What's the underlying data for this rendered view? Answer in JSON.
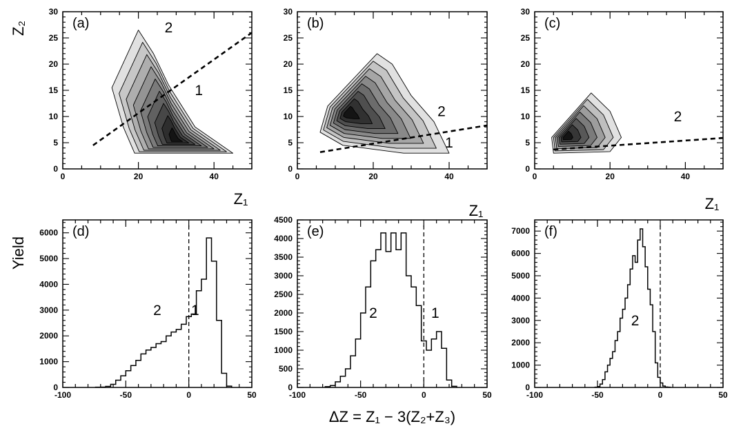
{
  "chart_data": [
    {
      "type": "contour",
      "panel": "(a)",
      "xlabel": "Z₁",
      "ylabel": "Z₂",
      "xlim": [
        0,
        50
      ],
      "ylim": [
        0,
        30
      ],
      "xticks": [
        "0",
        "20",
        "40"
      ],
      "yticks": [
        "0",
        "5",
        "10",
        "15",
        "20",
        "25",
        "30"
      ],
      "region_labels": [
        {
          "text": "2",
          "x": 28,
          "y": 27
        },
        {
          "text": "1",
          "x": 36,
          "y": 15
        }
      ],
      "divider": {
        "x": [
          8,
          50
        ],
        "y": [
          4.5,
          26
        ]
      },
      "support": [
        [
          20,
          26.5
        ],
        [
          13,
          15.5
        ],
        [
          16,
          8
        ],
        [
          19,
          3
        ],
        [
          45,
          3
        ],
        [
          35,
          8
        ],
        [
          28,
          16
        ],
        [
          24,
          22
        ]
      ],
      "density_peak": [
        30,
        5.5
      ],
      "contour_levels": 9
    },
    {
      "type": "contour",
      "panel": "(b)",
      "xlabel": "Z₁",
      "ylabel": "",
      "xlim": [
        0,
        50
      ],
      "ylim": [
        0,
        30
      ],
      "xticks": [
        "0",
        "20",
        "40"
      ],
      "yticks": [
        "0",
        "5",
        "10",
        "15",
        "20",
        "25",
        "30"
      ],
      "region_labels": [
        {
          "text": "2",
          "x": 38,
          "y": 11
        },
        {
          "text": "1",
          "x": 40,
          "y": 5
        }
      ],
      "divider": {
        "x": [
          6,
          50
        ],
        "y": [
          3.2,
          8.3
        ]
      },
      "support": [
        [
          21,
          22
        ],
        [
          8,
          12
        ],
        [
          6,
          7
        ],
        [
          12,
          4.5
        ],
        [
          28,
          3
        ],
        [
          40,
          3
        ],
        [
          36,
          9
        ],
        [
          30,
          14
        ],
        [
          25,
          20
        ]
      ],
      "density_peak": [
        13,
        10.5
      ],
      "contour_levels": 8
    },
    {
      "type": "contour",
      "panel": "(c)",
      "xlabel": "Z₁",
      "ylabel": "",
      "xlim": [
        0,
        50
      ],
      "ylim": [
        0,
        30
      ],
      "xticks": [
        "0",
        "20",
        "40"
      ],
      "yticks": [
        "0",
        "5",
        "10",
        "15",
        "20",
        "25",
        "30"
      ],
      "region_labels": [
        {
          "text": "2",
          "x": 38,
          "y": 10
        }
      ],
      "divider": {
        "x": [
          5,
          50
        ],
        "y": [
          3.7,
          5.9
        ]
      },
      "support": [
        [
          15,
          14.5
        ],
        [
          4.5,
          6
        ],
        [
          5,
          3
        ],
        [
          20,
          3.3
        ],
        [
          23,
          6
        ],
        [
          20,
          11
        ]
      ],
      "density_peak": [
        8,
        6
      ],
      "contour_levels": 7
    },
    {
      "type": "histogram",
      "panel": "(d)",
      "xlabel": "",
      "ylabel": "Yield",
      "xlim": [
        -100,
        50
      ],
      "ylim": [
        0,
        6500
      ],
      "xticks": [
        "-100",
        "-50",
        "0",
        "50"
      ],
      "yticks": [
        "0",
        "1000",
        "2000",
        "3000",
        "4000",
        "5000",
        "6000"
      ],
      "bin_width": 4,
      "bins_start": -74,
      "values": [
        10,
        15,
        40,
        120,
        280,
        450,
        650,
        850,
        1050,
        1300,
        1450,
        1550,
        1700,
        1780,
        2000,
        2150,
        2250,
        2450,
        2750,
        2850,
        3750,
        4200,
        5800,
        4900,
        2600,
        550,
        50
      ],
      "region_labels": [
        {
          "text": "2",
          "x": -25,
          "y": 3000
        },
        {
          "text": "1",
          "x": 5,
          "y": 3000
        }
      ],
      "divider_x": 0
    },
    {
      "type": "histogram",
      "panel": "(e)",
      "xlabel": "ΔZ = Z₁ − 3(Z₂+Z₃)",
      "ylabel": "",
      "xlim": [
        -100,
        50
      ],
      "ylim": [
        0,
        4500
      ],
      "xticks": [
        "-100",
        "-50",
        "0",
        "50"
      ],
      "yticks": [
        "0",
        "500",
        "1000",
        "1500",
        "2000",
        "2500",
        "3000",
        "3500",
        "4000",
        "4500"
      ],
      "bin_width": 4,
      "bins_start": -78,
      "values": [
        20,
        50,
        150,
        300,
        500,
        850,
        1300,
        2000,
        2700,
        3400,
        3700,
        4150,
        3650,
        4150,
        3700,
        4150,
        3000,
        2700,
        2200,
        1250,
        1000,
        1300,
        1500,
        1050,
        200,
        30
      ],
      "region_labels": [
        {
          "text": "2",
          "x": -40,
          "y": 2000
        },
        {
          "text": "1",
          "x": 9,
          "y": 2000
        }
      ],
      "divider_x": 0
    },
    {
      "type": "histogram",
      "panel": "(f)",
      "xlabel": "",
      "ylabel": "",
      "xlim": [
        -100,
        50
      ],
      "ylim": [
        0,
        7500
      ],
      "xticks": [
        "-100",
        "-50",
        "0",
        "50"
      ],
      "yticks": [
        "0",
        "1000",
        "2000",
        "3000",
        "4000",
        "5000",
        "6000",
        "7000"
      ],
      "bin_width": 2,
      "bins_start": -52,
      "values": [
        10,
        40,
        150,
        350,
        700,
        1000,
        1300,
        1600,
        2100,
        2500,
        3100,
        3500,
        4000,
        4600,
        5300,
        5900,
        5600,
        6600,
        7100,
        6300,
        5400,
        4400,
        3700,
        2500,
        1100,
        450,
        200,
        60,
        20,
        10
      ],
      "region_labels": [
        {
          "text": "2",
          "x": -20,
          "y": 3000
        }
      ],
      "divider_x": 0
    }
  ]
}
